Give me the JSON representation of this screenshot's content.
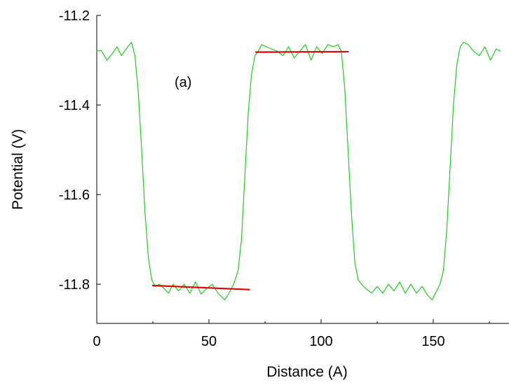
{
  "chart_data": {
    "type": "line",
    "xlabel": "Distance (A)",
    "ylabel": "Potential (V)",
    "annotation": "(a)",
    "xlim": [
      0,
      180
    ],
    "ylim": [
      -11.9,
      -11.2
    ],
    "x_ticks": [
      0,
      50,
      100,
      150
    ],
    "x_tick_labels": [
      "0",
      "50",
      "100",
      "150"
    ],
    "y_ticks": [
      -11.2,
      -11.4,
      -11.6,
      -11.8
    ],
    "y_tick_labels": [
      "-11.2",
      "-11.4",
      "-11.6",
      "-11.8"
    ],
    "grid": false,
    "series": [
      {
        "color": "#22cc22",
        "x": [
          0,
          2,
          4.5,
          7,
          9,
          11,
          13,
          15.5,
          17,
          18.5,
          20,
          21.5,
          23,
          24.5,
          26,
          28,
          30,
          32,
          34,
          36.5,
          39,
          41.5,
          44,
          46.5,
          49,
          51.5,
          54,
          57,
          59,
          61,
          63,
          64.5,
          66,
          67.5,
          69,
          70.5,
          72,
          73.5,
          75.5,
          78,
          80.5,
          83,
          85.5,
          88,
          90.5,
          93,
          95.5,
          98,
          100.5,
          103,
          105.5,
          107.5,
          109,
          110.5,
          112,
          113.5,
          115,
          116.5,
          118,
          120,
          122.5,
          125,
          127.5,
          130,
          132.5,
          135,
          137.5,
          140,
          142.5,
          145,
          147.5,
          149.5,
          151.5,
          153,
          154.5,
          156,
          157.5,
          159,
          160.5,
          162,
          163.5,
          165.5,
          168,
          170.5,
          173,
          175.5,
          178,
          180
        ],
        "y": [
          -11.28,
          -11.278,
          -11.3,
          -11.285,
          -11.27,
          -11.29,
          -11.275,
          -11.26,
          -11.29,
          -11.37,
          -11.5,
          -11.64,
          -11.74,
          -11.79,
          -11.805,
          -11.8,
          -11.81,
          -11.82,
          -11.8,
          -11.815,
          -11.8,
          -11.82,
          -11.795,
          -11.822,
          -11.81,
          -11.8,
          -11.82,
          -11.835,
          -11.82,
          -11.8,
          -11.77,
          -11.7,
          -11.56,
          -11.42,
          -11.33,
          -11.29,
          -11.28,
          -11.265,
          -11.27,
          -11.275,
          -11.28,
          -11.29,
          -11.27,
          -11.295,
          -11.28,
          -11.265,
          -11.3,
          -11.27,
          -11.285,
          -11.265,
          -11.27,
          -11.265,
          -11.28,
          -11.36,
          -11.5,
          -11.64,
          -11.75,
          -11.79,
          -11.8,
          -11.81,
          -11.82,
          -11.805,
          -11.82,
          -11.8,
          -11.815,
          -11.795,
          -11.82,
          -11.8,
          -11.82,
          -11.805,
          -11.825,
          -11.835,
          -11.815,
          -11.8,
          -11.77,
          -11.68,
          -11.54,
          -11.4,
          -11.31,
          -11.27,
          -11.26,
          -11.265,
          -11.28,
          -11.29,
          -11.27,
          -11.3,
          -11.275,
          -11.28
        ]
      },
      {
        "color": "#dd0000",
        "x": [
          25,
          68
        ],
        "y": [
          -11.803,
          -11.812
        ]
      },
      {
        "color": "#dd0000",
        "x": [
          71,
          112
        ],
        "y": [
          -11.282,
          -11.281
        ]
      }
    ]
  }
}
